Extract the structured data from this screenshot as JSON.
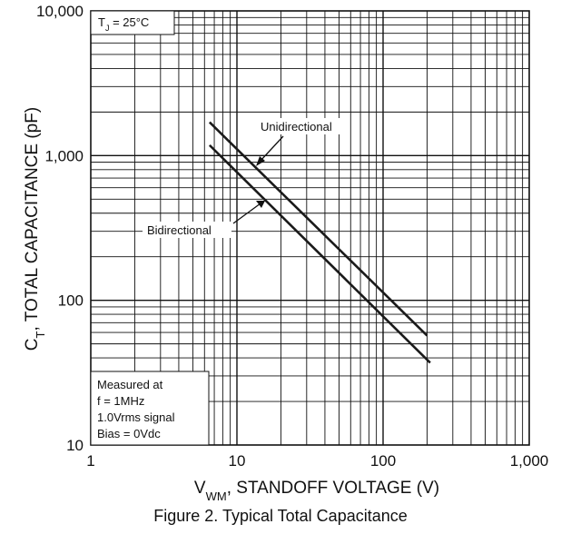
{
  "chart_data": {
    "type": "line",
    "x_scale": "log",
    "y_scale": "log",
    "xlim": [
      1,
      1000
    ],
    "ylim": [
      10,
      10000
    ],
    "grid": true,
    "x_ticks": [
      1,
      10,
      100,
      1000
    ],
    "x_tick_labels": [
      "1",
      "10",
      "100",
      "1,000"
    ],
    "y_ticks": [
      10,
      100,
      1000,
      10000
    ],
    "y_tick_labels": [
      "10",
      "100",
      "1,000",
      "10,000"
    ],
    "xlabel": {
      "main": "V",
      "sub": "WM",
      "rest": ", STANDOFF VOLTAGE (V)"
    },
    "ylabel": {
      "main": "C",
      "sub": "T",
      "rest": ", TOTAL CAPACITANCE (pF)"
    },
    "series": [
      {
        "name": "Unidirectional",
        "x": [
          6.5,
          200
        ],
        "y": [
          1700,
          57
        ]
      },
      {
        "name": "Bidirectional",
        "x": [
          6.5,
          210
        ],
        "y": [
          1180,
          37
        ]
      }
    ],
    "annotations": {
      "condition": {
        "main": "T",
        "sub": "J",
        "rest": " = 25°C"
      },
      "measurement": [
        "Measured at",
        "f = 1MHz",
        "1.0Vrms signal",
        "Bias = 0Vdc"
      ]
    }
  },
  "caption": "Figure 2. Typical Total Capacitance"
}
